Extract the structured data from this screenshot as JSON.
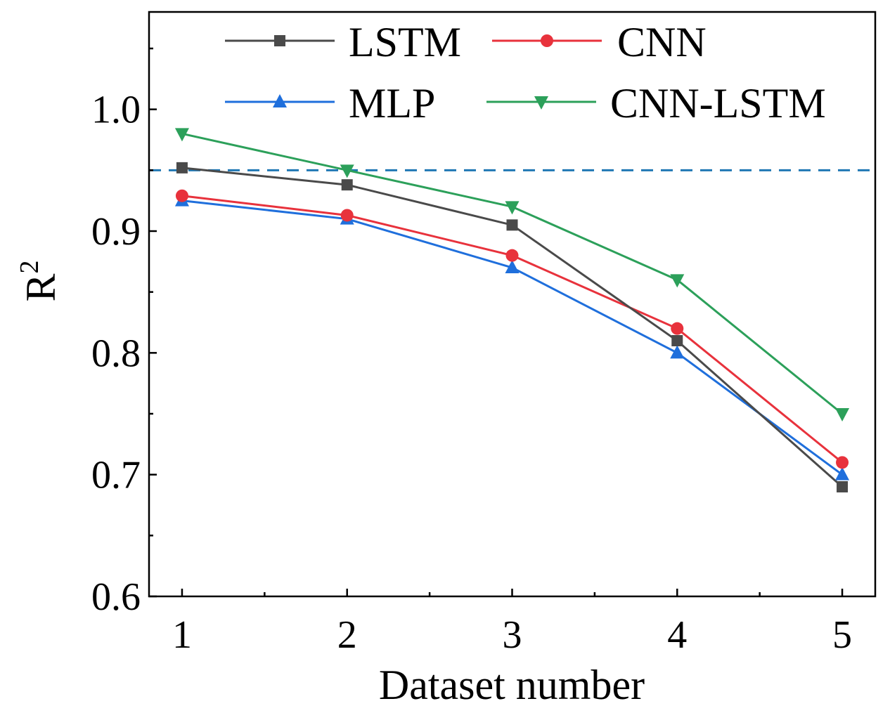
{
  "chart_data": {
    "type": "line",
    "xlabel": "Dataset number",
    "ylabel": "R",
    "ylabel_superscript": "2",
    "x": [
      1,
      2,
      3,
      4,
      5
    ],
    "xlim": [
      0.8,
      5.2
    ],
    "ylim": [
      0.6,
      1.08
    ],
    "yticks": [
      "0.6",
      "0.7",
      "0.8",
      "0.9",
      "1.0"
    ],
    "xticks": [
      "1",
      "2",
      "3",
      "4",
      "5"
    ],
    "grid": false,
    "legend_position": "top",
    "reference_line": {
      "y": 0.95,
      "style": "dashed",
      "color": "#1f77b4"
    },
    "series": [
      {
        "name": "LSTM",
        "color": "#4a4a4a",
        "marker": "square",
        "values": [
          0.952,
          0.938,
          0.905,
          0.81,
          0.69
        ]
      },
      {
        "name": "CNN",
        "color": "#e8323c",
        "marker": "circle",
        "values": [
          0.929,
          0.913,
          0.88,
          0.82,
          0.71
        ]
      },
      {
        "name": "MLP",
        "color": "#1f6fdc",
        "marker": "triangle-up",
        "values": [
          0.925,
          0.91,
          0.87,
          0.8,
          0.7
        ]
      },
      {
        "name": "CNN-LSTM",
        "color": "#2ca05a",
        "marker": "triangle-down",
        "values": [
          0.98,
          0.95,
          0.92,
          0.86,
          0.75
        ]
      }
    ]
  }
}
